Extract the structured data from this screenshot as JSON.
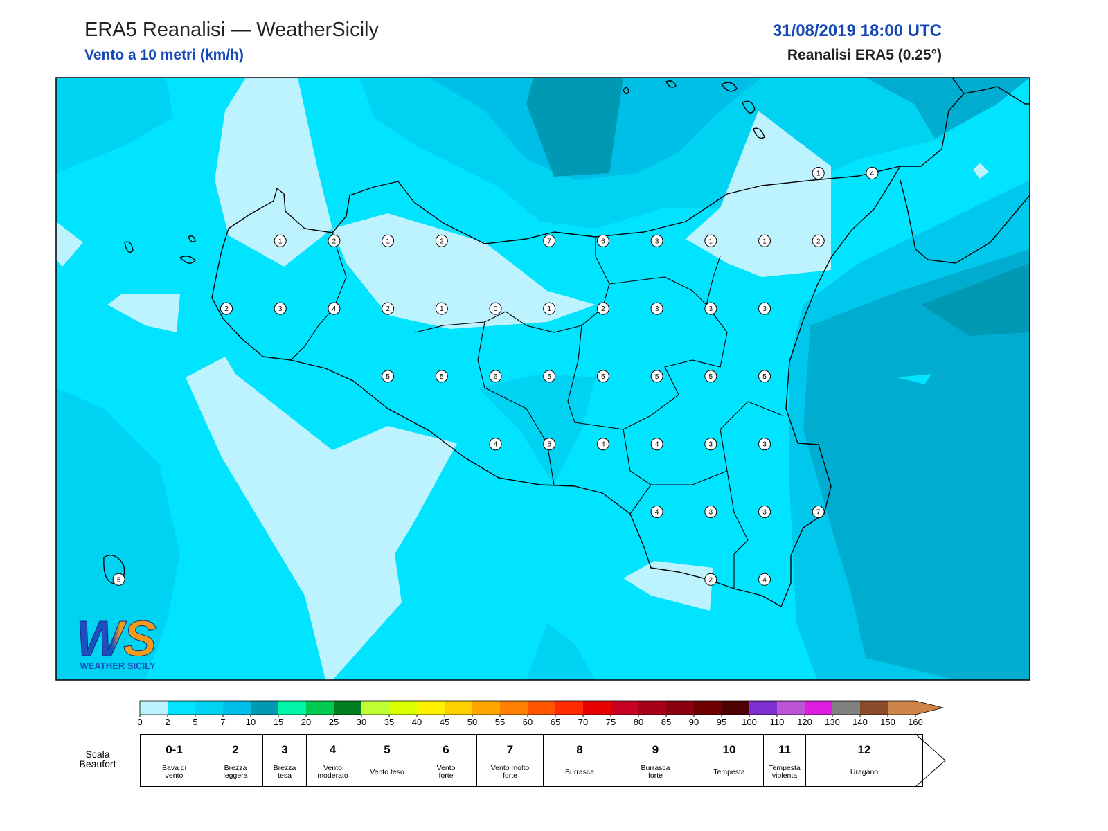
{
  "header": {
    "title": "ERA5 Reanalisi — WeatherSicily",
    "subtitle": "Vento a 10 metri (km/h)",
    "datetime": "31/08/2019 18:00 UTC",
    "source": "Reanalisi ERA5 (0.25°)"
  },
  "wind_grid": {
    "rows": [
      [
        null,
        null,
        null,
        null,
        null,
        null,
        null,
        null,
        null,
        null,
        null,
        null,
        null,
        1,
        4
      ],
      [
        null,
        null,
        null,
        1,
        2,
        1,
        2,
        null,
        7,
        6,
        3,
        1,
        1,
        2,
        null
      ],
      [
        null,
        null,
        2,
        3,
        4,
        2,
        1,
        0,
        1,
        2,
        3,
        3,
        3,
        null,
        null
      ],
      [
        null,
        null,
        null,
        null,
        null,
        5,
        5,
        6,
        5,
        5,
        5,
        5,
        5,
        null,
        null
      ],
      [
        null,
        null,
        null,
        null,
        null,
        null,
        null,
        4,
        5,
        4,
        4,
        3,
        3,
        null,
        null
      ],
      [
        null,
        null,
        null,
        null,
        null,
        null,
        null,
        null,
        null,
        null,
        4,
        3,
        3,
        7,
        null
      ],
      [
        5,
        null,
        null,
        null,
        null,
        null,
        null,
        null,
        null,
        null,
        null,
        2,
        4,
        null,
        null
      ]
    ]
  },
  "logo": {
    "letters": "WS",
    "text": "WEATHER SICILY"
  },
  "colorbar": {
    "ticks": [
      0,
      2,
      5,
      7,
      10,
      15,
      20,
      25,
      30,
      35,
      40,
      45,
      50,
      55,
      60,
      65,
      70,
      75,
      80,
      85,
      90,
      95,
      100,
      110,
      120,
      130,
      140,
      150,
      160
    ],
    "colors": [
      "#bdf2ff",
      "#00e4ff",
      "#00d2f2",
      "#00bfe6",
      "#0099b3",
      "#00f5a8",
      "#00c94f",
      "#007f1e",
      "#bfff33",
      "#d9ff00",
      "#fff200",
      "#ffd000",
      "#ffa600",
      "#ff8000",
      "#ff5500",
      "#ff2a00",
      "#e60000",
      "#c70022",
      "#a8001a",
      "#8a0010",
      "#6e0000",
      "#4d0000",
      "#7d2fd0",
      "#bb55d6",
      "#e01ce0",
      "#808080",
      "#555555",
      "#000000"
    ],
    "over_colors": [
      "#8b4a2a",
      "#cd8448"
    ]
  },
  "beaufort": {
    "label": "Scala Beaufort",
    "classes": [
      {
        "force": "0-1",
        "name": "Bava di vento"
      },
      {
        "force": "2",
        "name": "Brezza leggera"
      },
      {
        "force": "3",
        "name": "Brezza tesa"
      },
      {
        "force": "4",
        "name": "Vento moderato"
      },
      {
        "force": "5",
        "name": "Vento teso"
      },
      {
        "force": "6",
        "name": "Vento forte"
      },
      {
        "force": "7",
        "name": "Vento molto forte"
      },
      {
        "force": "8",
        "name": "Burrasca"
      },
      {
        "force": "9",
        "name": "Burrasca forte"
      },
      {
        "force": "10",
        "name": "Tempesta"
      },
      {
        "force": "11",
        "name": "Tempesta violenta"
      },
      {
        "force": "12",
        "name": "Uragano"
      }
    ]
  }
}
